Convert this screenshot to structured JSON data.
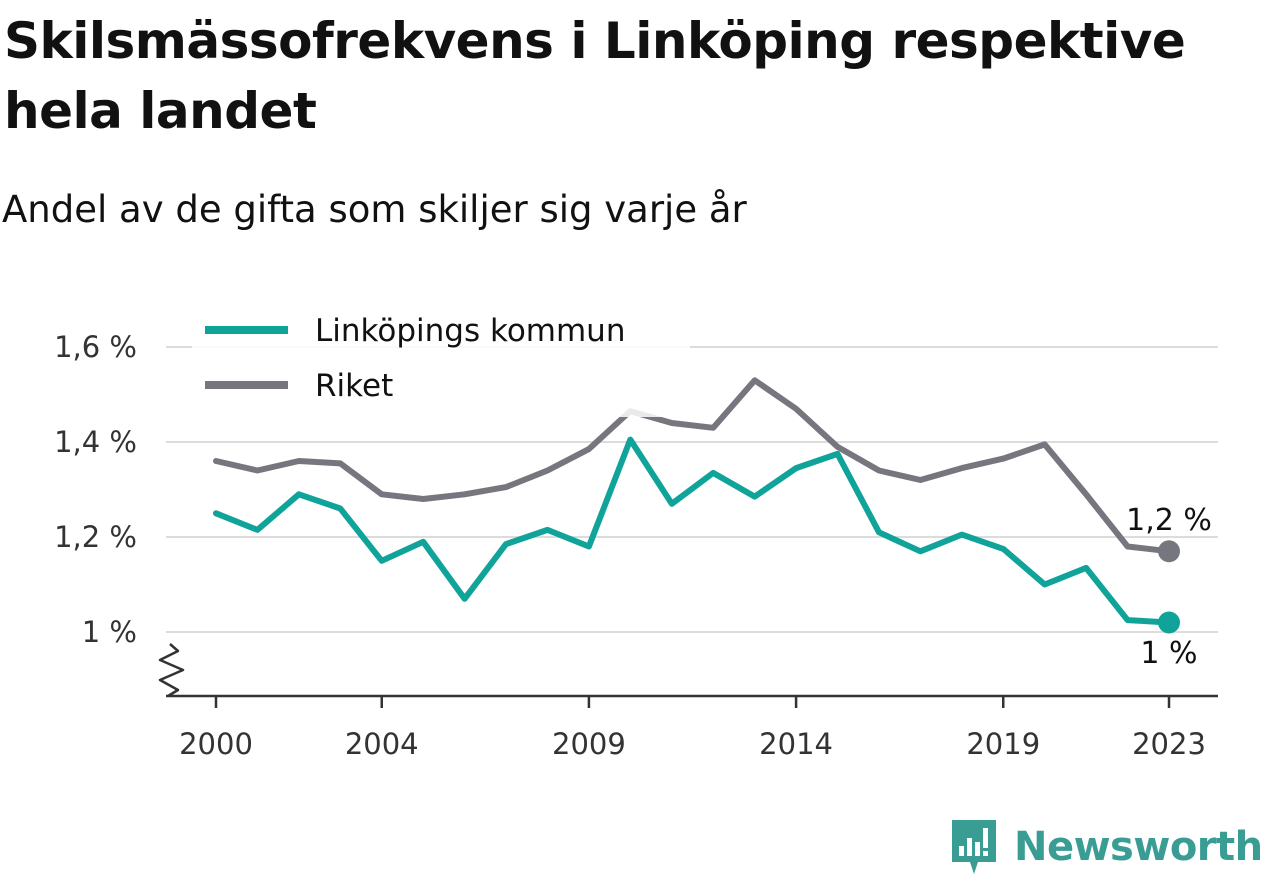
{
  "title": "Skilsmässofrekvens i Linköping respektive hela landet",
  "subtitle": "Andel av de gifta som skiljer sig varje år",
  "brand": "Newsworthy",
  "colors": {
    "linkoping": "#0fa39a",
    "riket": "#76767e",
    "grid": "#dcdcdc",
    "axis": "#333333"
  },
  "chart_data": {
    "type": "line",
    "title": "Skilsmässofrekvens i Linköping respektive hela landet",
    "subtitle": "Andel av de gifta som skiljer sig varje år",
    "xlabel": "",
    "ylabel": "",
    "x": [
      2000,
      2001,
      2002,
      2003,
      2004,
      2005,
      2006,
      2007,
      2008,
      2009,
      2010,
      2011,
      2012,
      2013,
      2014,
      2015,
      2016,
      2017,
      2018,
      2019,
      2020,
      2021,
      2022,
      2023
    ],
    "x_tick_labels": [
      "2000",
      "2004",
      "2009",
      "2014",
      "2019",
      "2023"
    ],
    "x_tick_values": [
      2000,
      2004,
      2009,
      2014,
      2019,
      2023
    ],
    "y_tick_labels": [
      "1 %",
      "1,2 %",
      "1,4 %",
      "1,6 %"
    ],
    "y_tick_values": [
      1.0,
      1.2,
      1.4,
      1.6
    ],
    "ylim": [
      0.87,
      1.6
    ],
    "y_axis_break": true,
    "grid": true,
    "legend_position": "top-left",
    "series": [
      {
        "name": "Linköpings kommun",
        "color": "#0fa39a",
        "values": [
          1.25,
          1.215,
          1.29,
          1.26,
          1.15,
          1.19,
          1.07,
          1.185,
          1.215,
          1.18,
          1.405,
          1.27,
          1.335,
          1.285,
          1.345,
          1.375,
          1.21,
          1.17,
          1.205,
          1.175,
          1.1,
          1.135,
          1.025,
          1.02
        ],
        "end_label": "1 %"
      },
      {
        "name": "Riket",
        "color": "#76767e",
        "values": [
          1.36,
          1.34,
          1.36,
          1.355,
          1.29,
          1.28,
          1.29,
          1.305,
          1.34,
          1.385,
          1.465,
          1.44,
          1.43,
          1.53,
          1.47,
          1.39,
          1.34,
          1.32,
          1.345,
          1.365,
          1.395,
          1.29,
          1.18,
          1.17
        ],
        "end_label": "1,2 %"
      }
    ]
  }
}
